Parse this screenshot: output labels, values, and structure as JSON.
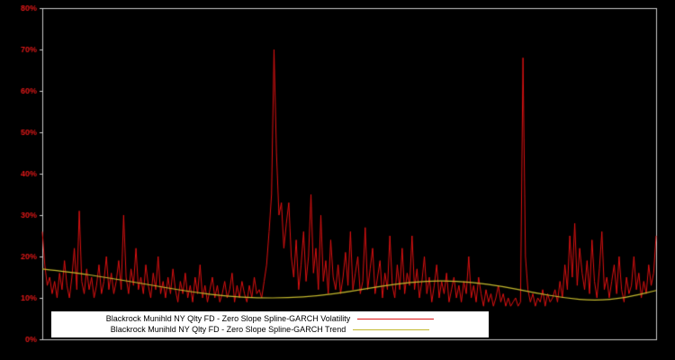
{
  "chart_data": {
    "type": "line",
    "title": "",
    "xlabel": "",
    "ylabel": "",
    "ylim": [
      0,
      80
    ],
    "yticks": [
      "0%",
      "10%",
      "20%",
      "30%",
      "40%",
      "50%",
      "60%",
      "70%",
      "80%"
    ],
    "grid": false,
    "legend_position": "bottom-center",
    "background_color": "#000000",
    "frame_color": "#c8c8c8",
    "tick_label_color": "#e01818",
    "legend_background": "#ffffff",
    "legend_text_color": "#000000",
    "series": [
      {
        "name": "Blackrock Munihld NY Qlty FD - Zero Slope Spline-GARCH Volatility",
        "color": "#dd1111",
        "values": [
          26,
          18,
          13,
          15,
          11,
          14,
          10,
          16,
          12,
          19,
          13,
          10,
          15,
          22,
          12,
          31,
          14,
          11,
          17,
          12,
          15,
          10,
          13,
          18,
          11,
          14,
          20,
          12,
          16,
          11,
          14,
          19,
          12,
          30,
          15,
          11,
          17,
          13,
          22,
          12,
          15,
          11,
          18,
          13,
          10,
          16,
          12,
          20,
          11,
          14,
          10,
          15,
          11,
          17,
          12,
          9,
          14,
          11,
          16,
          10,
          13,
          9,
          15,
          11,
          18,
          10,
          13,
          9,
          12,
          15,
          10,
          13,
          9,
          11,
          14,
          10,
          12,
          16,
          9,
          13,
          10,
          14,
          11,
          9,
          13,
          10,
          15,
          11,
          12,
          10,
          14,
          18,
          26,
          35,
          70,
          45,
          30,
          33,
          22,
          28,
          33,
          20,
          15,
          24,
          12,
          18,
          26,
          14,
          20,
          35,
          16,
          22,
          12,
          30,
          14,
          19,
          11,
          24,
          15,
          12,
          18,
          11,
          15,
          21,
          13,
          26,
          12,
          16,
          20,
          11,
          14,
          27,
          12,
          17,
          22,
          11,
          15,
          19,
          10,
          16,
          12,
          25,
          13,
          10,
          18,
          12,
          22,
          11,
          16,
          13,
          25,
          12,
          17,
          10,
          14,
          20,
          11,
          15,
          9,
          13,
          18,
          10,
          14,
          11,
          16,
          9,
          12,
          15,
          10,
          13,
          9,
          14,
          11,
          20,
          10,
          13,
          9,
          15,
          11,
          8,
          12,
          9,
          11,
          8,
          10,
          13,
          9,
          11,
          8,
          10,
          8,
          9,
          10,
          8,
          9,
          68,
          20,
          12,
          9,
          11,
          8,
          10,
          9,
          12,
          8,
          11,
          9,
          10,
          12,
          9,
          14,
          10,
          18,
          12,
          25,
          15,
          28,
          13,
          22,
          16,
          12,
          19,
          11,
          24,
          14,
          10,
          17,
          26,
          12,
          15,
          10,
          14,
          18,
          11,
          20,
          12,
          9,
          15,
          11,
          13,
          20,
          12,
          16,
          10,
          14,
          11,
          18,
          13,
          16,
          25
        ]
      },
      {
        "name": "Blackrock Munihld NY Qlty FD - Zero Slope Spline-GARCH Trend",
        "color": "#c3b82d",
        "x": [
          0,
          0.05,
          0.1,
          0.15,
          0.2,
          0.25,
          0.3,
          0.35,
          0.4,
          0.45,
          0.5,
          0.55,
          0.6,
          0.65,
          0.7,
          0.75,
          0.8,
          0.85,
          0.9,
          0.95,
          1
        ],
        "values": [
          17,
          16.2,
          15,
          13.8,
          12.5,
          11.3,
          10.4,
          10,
          10,
          10.5,
          11.5,
          12.8,
          13.8,
          14.2,
          13.8,
          12.8,
          11.3,
          10,
          9.3,
          10,
          11.8
        ]
      }
    ]
  }
}
